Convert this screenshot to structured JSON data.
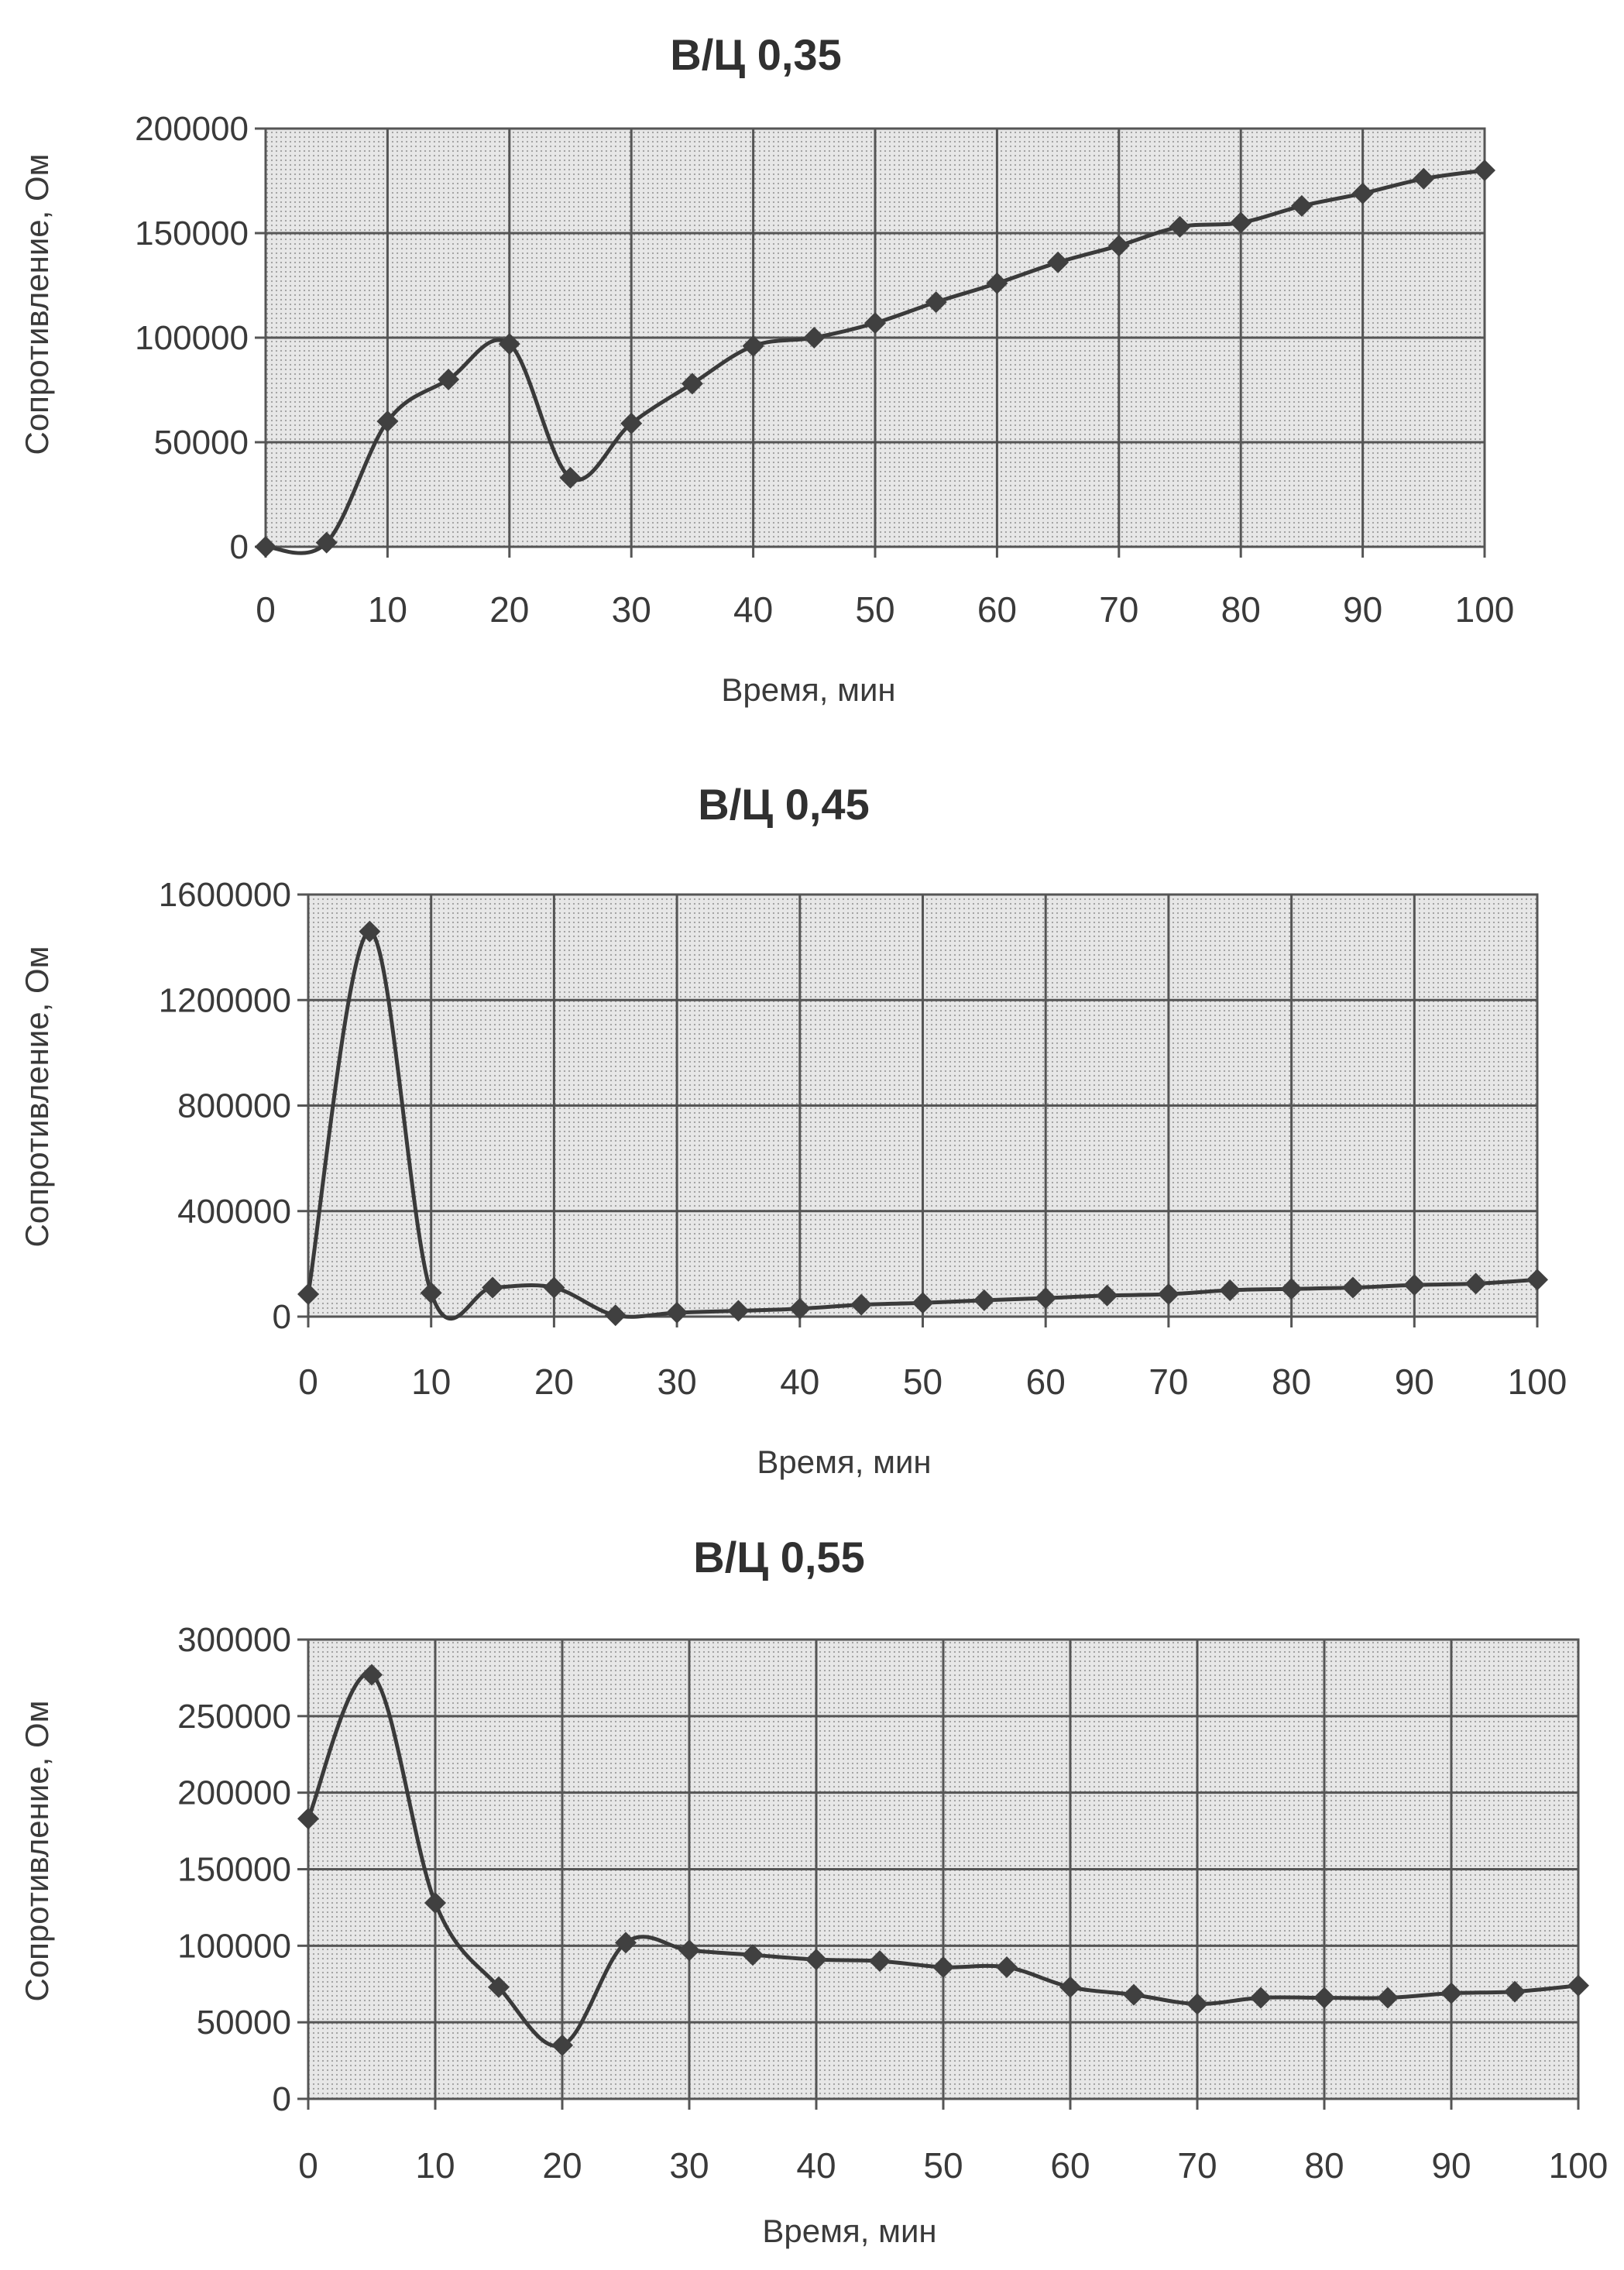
{
  "chart_data": [
    {
      "type": "line",
      "title": "В/Ц 0,35",
      "xlabel": "Время, мин",
      "ylabel": "Сопротивление, Ом",
      "xlim": [
        0,
        100
      ],
      "ylim": [
        0,
        200000
      ],
      "x_ticks": [
        0,
        10,
        20,
        30,
        40,
        50,
        60,
        70,
        80,
        90,
        100
      ],
      "y_ticks": [
        0,
        50000,
        100000,
        150000,
        200000
      ],
      "x_tick_labels": [
        "0",
        "10",
        "20",
        "30",
        "40",
        "50",
        "60",
        "70",
        "80",
        "90",
        "100"
      ],
      "y_tick_labels": [
        "0",
        "50000",
        "100000",
        "150000",
        "200000"
      ],
      "grid": true,
      "x": [
        0,
        5,
        10,
        15,
        20,
        25,
        30,
        35,
        40,
        45,
        50,
        55,
        60,
        65,
        70,
        75,
        80,
        85,
        90,
        95,
        100
      ],
      "series": [
        {
          "values": [
            0,
            2000,
            60000,
            80000,
            97000,
            33000,
            59000,
            78000,
            96000,
            100000,
            107000,
            117000,
            126000,
            136000,
            144000,
            153000,
            155000,
            163000,
            169000,
            176000,
            180000
          ]
        }
      ]
    },
    {
      "type": "line",
      "title": "В/Ц 0,45",
      "xlabel": "Время, мин",
      "ylabel": "Сопротивление, Ом",
      "xlim": [
        0,
        100
      ],
      "ylim": [
        0,
        1600000
      ],
      "x_ticks": [
        0,
        10,
        20,
        30,
        40,
        50,
        60,
        70,
        80,
        90,
        100
      ],
      "y_ticks": [
        0,
        400000,
        800000,
        1200000,
        1600000
      ],
      "x_tick_labels": [
        "0",
        "10",
        "20",
        "30",
        "40",
        "50",
        "60",
        "70",
        "80",
        "90",
        "100"
      ],
      "y_tick_labels": [
        "0",
        "400000",
        "800000",
        "1200000",
        "1600000"
      ],
      "grid": true,
      "x": [
        0,
        5,
        10,
        15,
        20,
        25,
        30,
        35,
        40,
        45,
        50,
        55,
        60,
        65,
        70,
        75,
        80,
        85,
        90,
        95,
        100
      ],
      "series": [
        {
          "values": [
            85000,
            1460000,
            90000,
            110000,
            110000,
            5000,
            15000,
            22000,
            30000,
            45000,
            52000,
            62000,
            70000,
            80000,
            85000,
            100000,
            105000,
            110000,
            120000,
            125000,
            140000
          ]
        }
      ]
    },
    {
      "type": "line",
      "title": "В/Ц 0,55",
      "xlabel": "Время, мин",
      "ylabel": "Сопротивление, Ом",
      "xlim": [
        0,
        100
      ],
      "ylim": [
        0,
        300000
      ],
      "x_ticks": [
        0,
        10,
        20,
        30,
        40,
        50,
        60,
        70,
        80,
        90,
        100
      ],
      "y_ticks": [
        0,
        50000,
        100000,
        150000,
        200000,
        250000,
        300000
      ],
      "x_tick_labels": [
        "0",
        "10",
        "20",
        "30",
        "40",
        "50",
        "60",
        "70",
        "80",
        "90",
        "100"
      ],
      "y_tick_labels": [
        "0",
        "50000",
        "100000",
        "150000",
        "200000",
        "250000",
        "300000"
      ],
      "grid": true,
      "x": [
        0,
        5,
        10,
        15,
        20,
        25,
        30,
        35,
        40,
        45,
        50,
        55,
        60,
        65,
        70,
        75,
        80,
        85,
        90,
        95,
        100
      ],
      "series": [
        {
          "values": [
            183000,
            277000,
            128000,
            73000,
            35000,
            102000,
            97000,
            94000,
            91000,
            90000,
            86000,
            86000,
            73000,
            68000,
            62000,
            66000,
            66000,
            66000,
            69000,
            70000,
            74000
          ]
        }
      ]
    }
  ]
}
